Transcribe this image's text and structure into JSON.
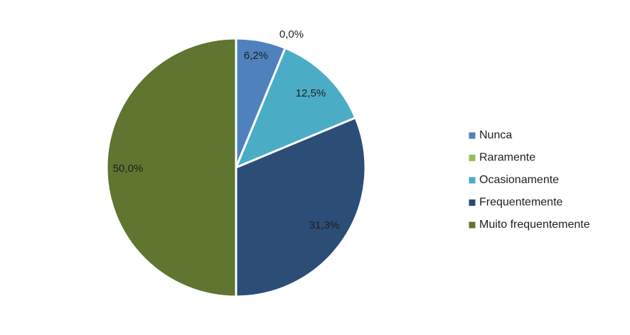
{
  "chart_data": {
    "type": "pie",
    "categories": [
      "Nunca",
      "Raramente",
      "Ocasionamente",
      "Frequentemente",
      "Muito frequentemente"
    ],
    "values": [
      6.2,
      0.0,
      12.5,
      31.3,
      50.0
    ],
    "data_labels": [
      "6,2%",
      "0,0%",
      "12,5%",
      "31,3%",
      "50,0%"
    ],
    "colors": [
      "#4f81bd",
      "#9bbb59",
      "#4bacc6",
      "#2c4d75",
      "#5f7530"
    ],
    "legend_position": "right",
    "start_angle_deg": 0,
    "direction": "clockwise"
  }
}
